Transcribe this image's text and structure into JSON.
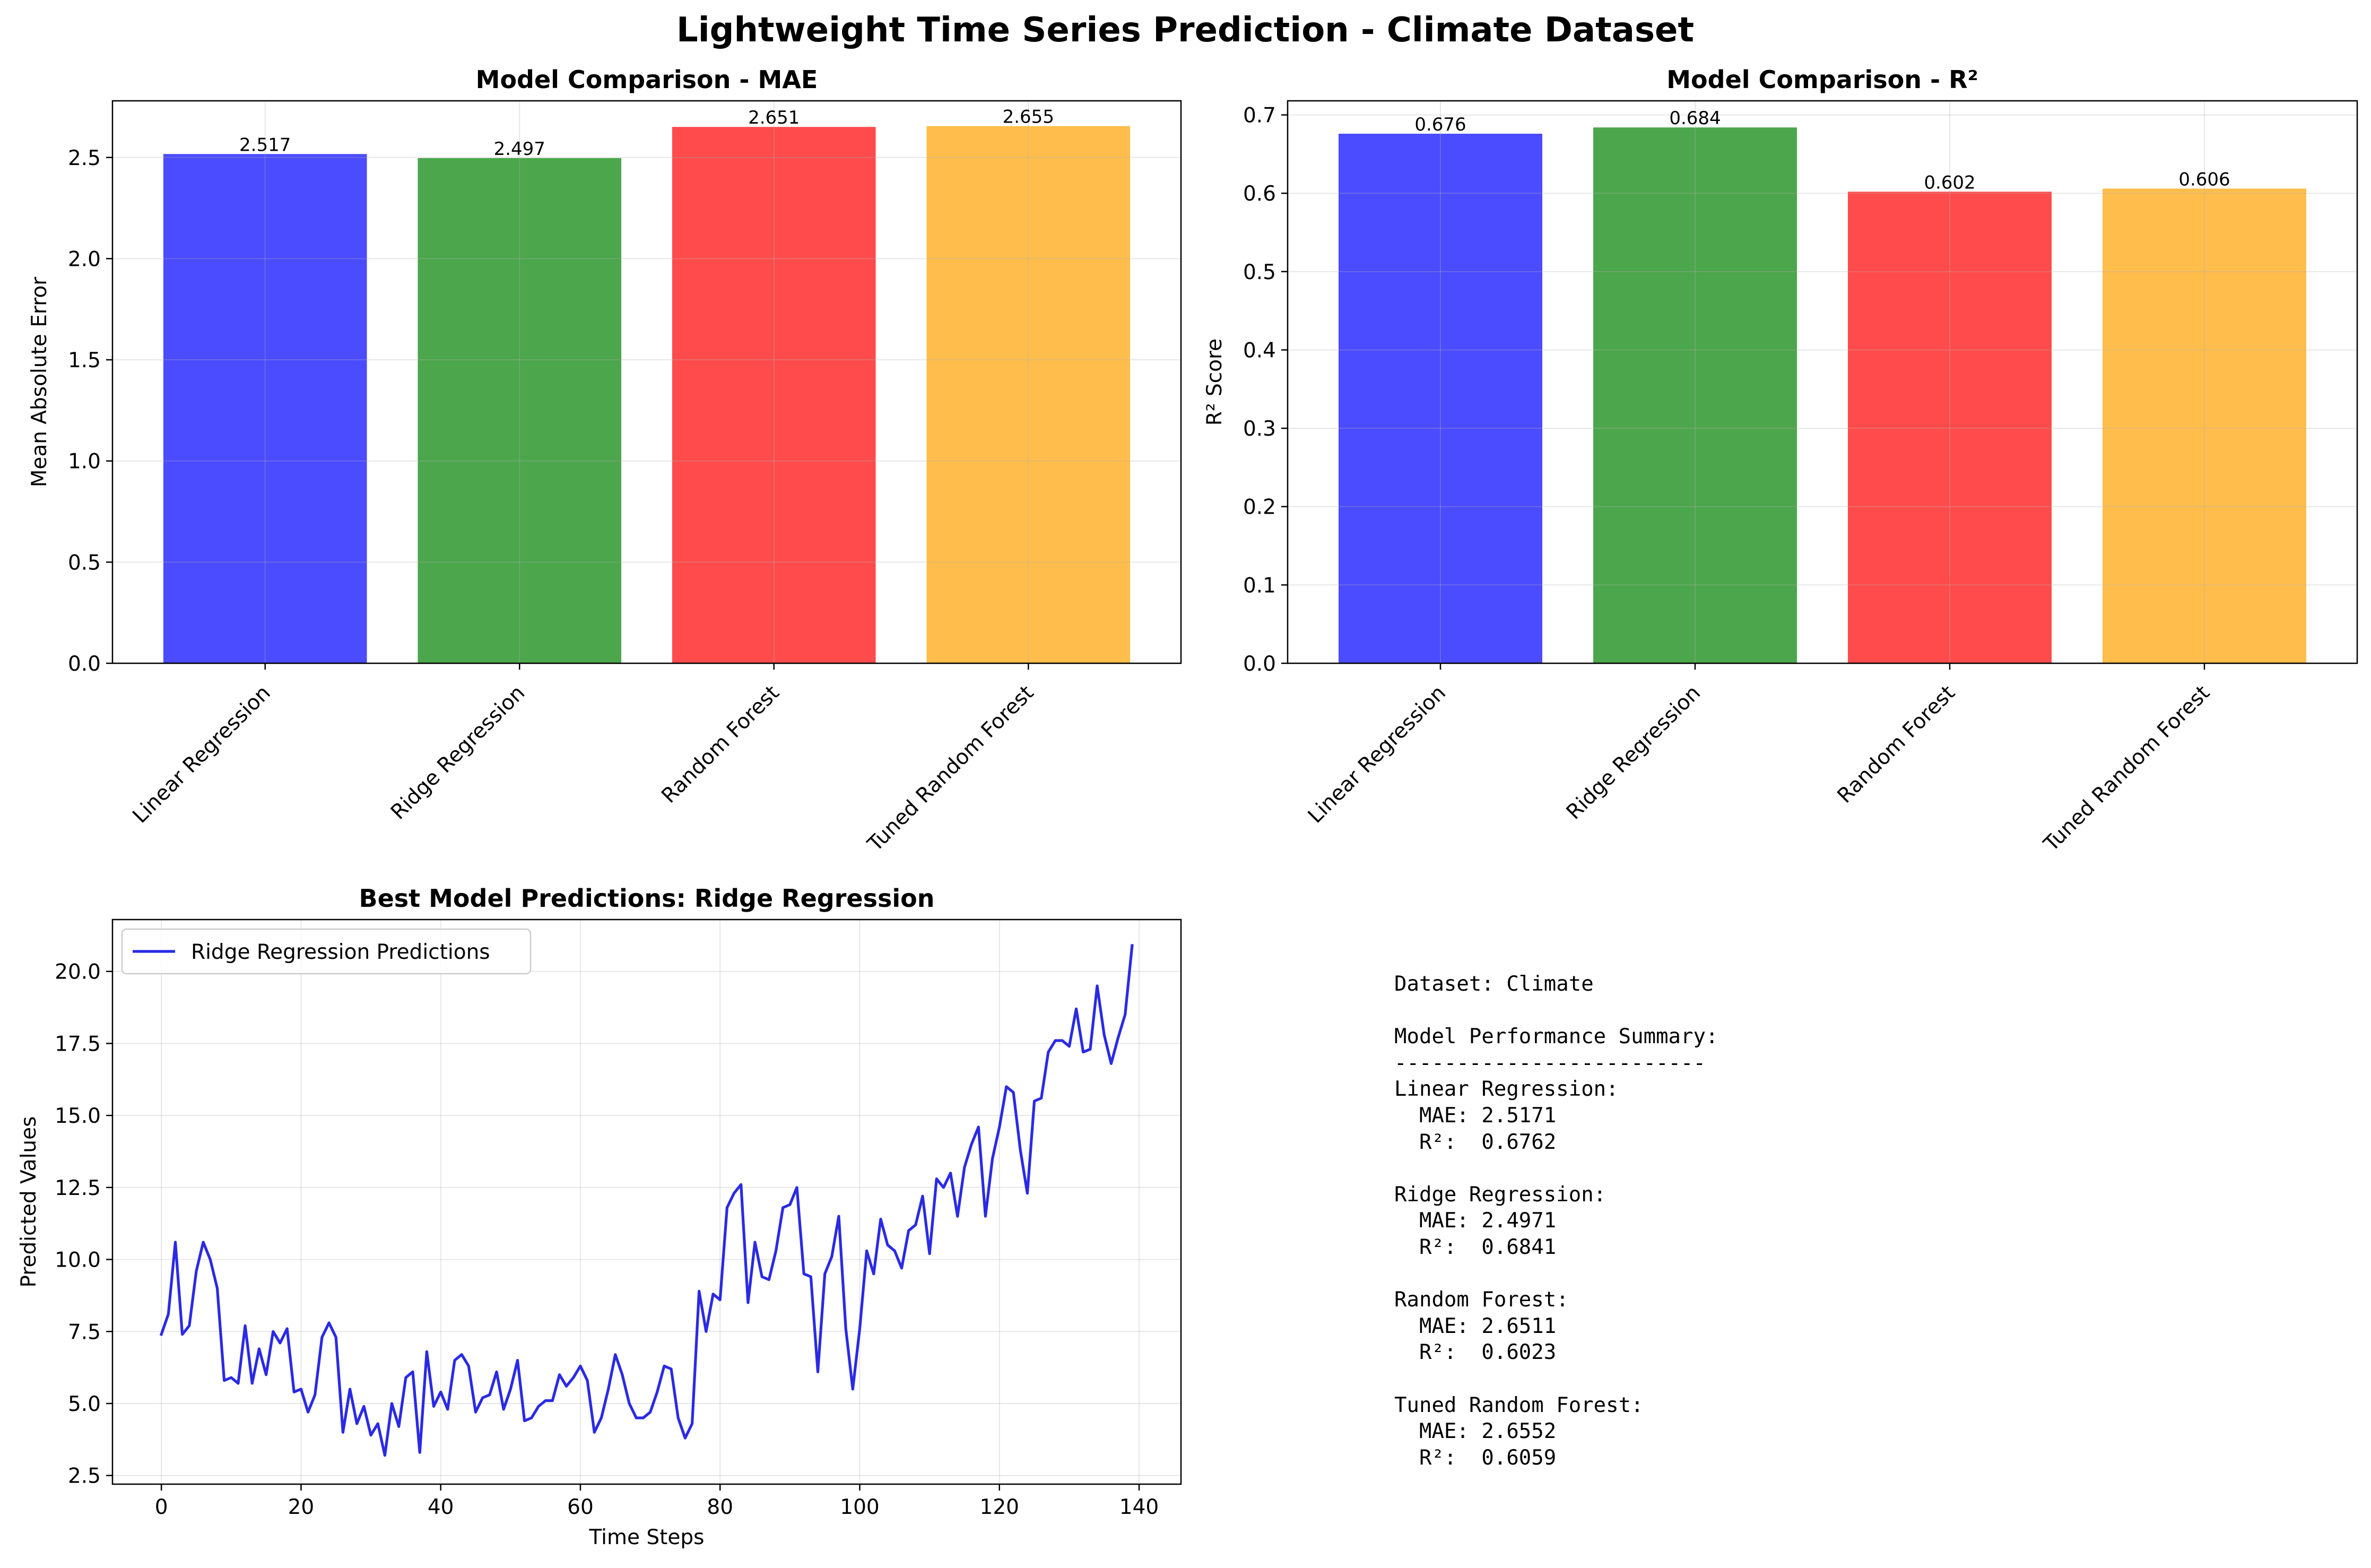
{
  "suptitle": "Lightweight Time Series Prediction - Climate Dataset",
  "chart_data": [
    {
      "type": "bar",
      "title": "Model Comparison - MAE",
      "xlabel": "",
      "ylabel": "Mean Absolute Error",
      "categories": [
        "Linear Regression",
        "Ridge Regression",
        "Random Forest",
        "Tuned Random Forest"
      ],
      "values": [
        2.517,
        2.497,
        2.651,
        2.655
      ],
      "value_labels": [
        "2.517",
        "2.497",
        "2.651",
        "2.655"
      ],
      "colors": [
        "#4b4bff",
        "#4ca64c",
        "#ff4b4b",
        "#ffbd4b"
      ],
      "ylim": [
        0,
        2.78
      ],
      "yticks": [
        0.0,
        0.5,
        1.0,
        1.5,
        2.0,
        2.5
      ],
      "ytick_labels": [
        "0.0",
        "0.5",
        "1.0",
        "1.5",
        "2.0",
        "2.5"
      ],
      "grid": true
    },
    {
      "type": "bar",
      "title": "Model Comparison - R²",
      "xlabel": "",
      "ylabel": "R² Score",
      "categories": [
        "Linear Regression",
        "Ridge Regression",
        "Random Forest",
        "Tuned Random Forest"
      ],
      "values": [
        0.676,
        0.684,
        0.602,
        0.606
      ],
      "value_labels": [
        "0.676",
        "0.684",
        "0.602",
        "0.606"
      ],
      "colors": [
        "#4b4bff",
        "#4ca64c",
        "#ff4b4b",
        "#ffbd4b"
      ],
      "ylim": [
        0,
        0.718
      ],
      "yticks": [
        0.0,
        0.1,
        0.2,
        0.3,
        0.4,
        0.5,
        0.6,
        0.7
      ],
      "ytick_labels": [
        "0.0",
        "0.1",
        "0.2",
        "0.3",
        "0.4",
        "0.5",
        "0.6",
        "0.7"
      ],
      "grid": true
    },
    {
      "type": "line",
      "title": "Best Model Predictions: Ridge Regression",
      "xlabel": "Time Steps",
      "ylabel": "Predicted Values",
      "xlim": [
        -7,
        146
      ],
      "ylim": [
        2.2,
        21.8
      ],
      "xticks": [
        0,
        20,
        40,
        60,
        80,
        100,
        120,
        140
      ],
      "xtick_labels": [
        "0",
        "20",
        "40",
        "60",
        "80",
        "100",
        "120",
        "140"
      ],
      "yticks": [
        2.5,
        5.0,
        7.5,
        10.0,
        12.5,
        15.0,
        17.5,
        20.0
      ],
      "ytick_labels": [
        "2.5",
        "5.0",
        "7.5",
        "10.0",
        "12.5",
        "15.0",
        "17.5",
        "20.0"
      ],
      "grid": true,
      "legend_position": "upper-left",
      "series": [
        {
          "name": "Ridge Regression Predictions",
          "color": "#2a2ae6",
          "x": [
            0,
            1,
            2,
            3,
            4,
            5,
            6,
            7,
            8,
            9,
            10,
            11,
            12,
            13,
            14,
            15,
            16,
            17,
            18,
            19,
            20,
            21,
            22,
            23,
            24,
            25,
            26,
            27,
            28,
            29,
            30,
            31,
            32,
            33,
            34,
            35,
            36,
            37,
            38,
            39,
            40,
            41,
            42,
            43,
            44,
            45,
            46,
            47,
            48,
            49,
            50,
            51,
            52,
            53,
            54,
            55,
            56,
            57,
            58,
            59,
            60,
            61,
            62,
            63,
            64,
            65,
            66,
            67,
            68,
            69,
            70,
            71,
            72,
            73,
            74,
            75,
            76,
            77,
            78,
            79,
            80,
            81,
            82,
            83,
            84,
            85,
            86,
            87,
            88,
            89,
            90,
            91,
            92,
            93,
            94,
            95,
            96,
            97,
            98,
            99,
            100,
            101,
            102,
            103,
            104,
            105,
            106,
            107,
            108,
            109,
            110,
            111,
            112,
            113,
            114,
            115,
            116,
            117,
            118,
            119,
            120,
            121,
            122,
            123,
            124,
            125,
            126,
            127,
            128,
            129,
            130,
            131,
            132,
            133,
            134,
            135,
            136,
            137,
            138,
            139
          ],
          "y": [
            7.4,
            8.1,
            10.6,
            7.4,
            7.7,
            9.6,
            10.6,
            10.0,
            9.0,
            5.8,
            5.9,
            5.7,
            7.7,
            5.7,
            6.9,
            6.0,
            7.5,
            7.1,
            7.6,
            5.4,
            5.5,
            4.7,
            5.3,
            7.3,
            7.8,
            7.3,
            4.0,
            5.5,
            4.3,
            4.9,
            3.9,
            4.3,
            3.2,
            5.0,
            4.2,
            5.9,
            6.1,
            3.3,
            6.8,
            4.9,
            5.4,
            4.8,
            6.5,
            6.7,
            6.3,
            4.7,
            5.2,
            5.3,
            6.1,
            4.8,
            5.5,
            6.5,
            4.4,
            4.5,
            4.9,
            5.1,
            5.1,
            6.0,
            5.6,
            5.9,
            6.3,
            5.8,
            4.0,
            4.5,
            5.5,
            6.7,
            6.0,
            5.0,
            4.5,
            4.5,
            4.7,
            5.4,
            6.3,
            6.2,
            4.5,
            3.8,
            4.3,
            8.9,
            7.5,
            8.8,
            8.6,
            11.8,
            12.3,
            12.6,
            8.5,
            10.6,
            9.4,
            9.3,
            10.3,
            11.8,
            11.9,
            12.5,
            9.5,
            9.4,
            6.1,
            9.5,
            10.1,
            11.5,
            7.6,
            5.5,
            7.6,
            10.3,
            9.5,
            11.4,
            10.5,
            10.3,
            9.7,
            11.0,
            11.2,
            12.2,
            10.2,
            12.8,
            12.5,
            13.0,
            11.5,
            13.2,
            14.0,
            14.6,
            11.5,
            13.5,
            14.6,
            16.0,
            15.8,
            13.8,
            12.3,
            15.5,
            15.6,
            17.2,
            17.6,
            17.6,
            17.4,
            18.7,
            17.2,
            17.3,
            19.5,
            17.8,
            16.8,
            17.7,
            18.5,
            20.9
          ]
        }
      ]
    }
  ],
  "summary": {
    "text": "Dataset: Climate\n\nModel Performance Summary:\n-------------------------\nLinear Regression:\n  MAE: 2.5171\n  R²:  0.6762\n\nRidge Regression:\n  MAE: 2.4971\n  R²:  0.6841\n\nRandom Forest:\n  MAE: 2.6511\n  R²:  0.6023\n\nTuned Random Forest:\n  MAE: 2.6552\n  R²:  0.6059"
  }
}
